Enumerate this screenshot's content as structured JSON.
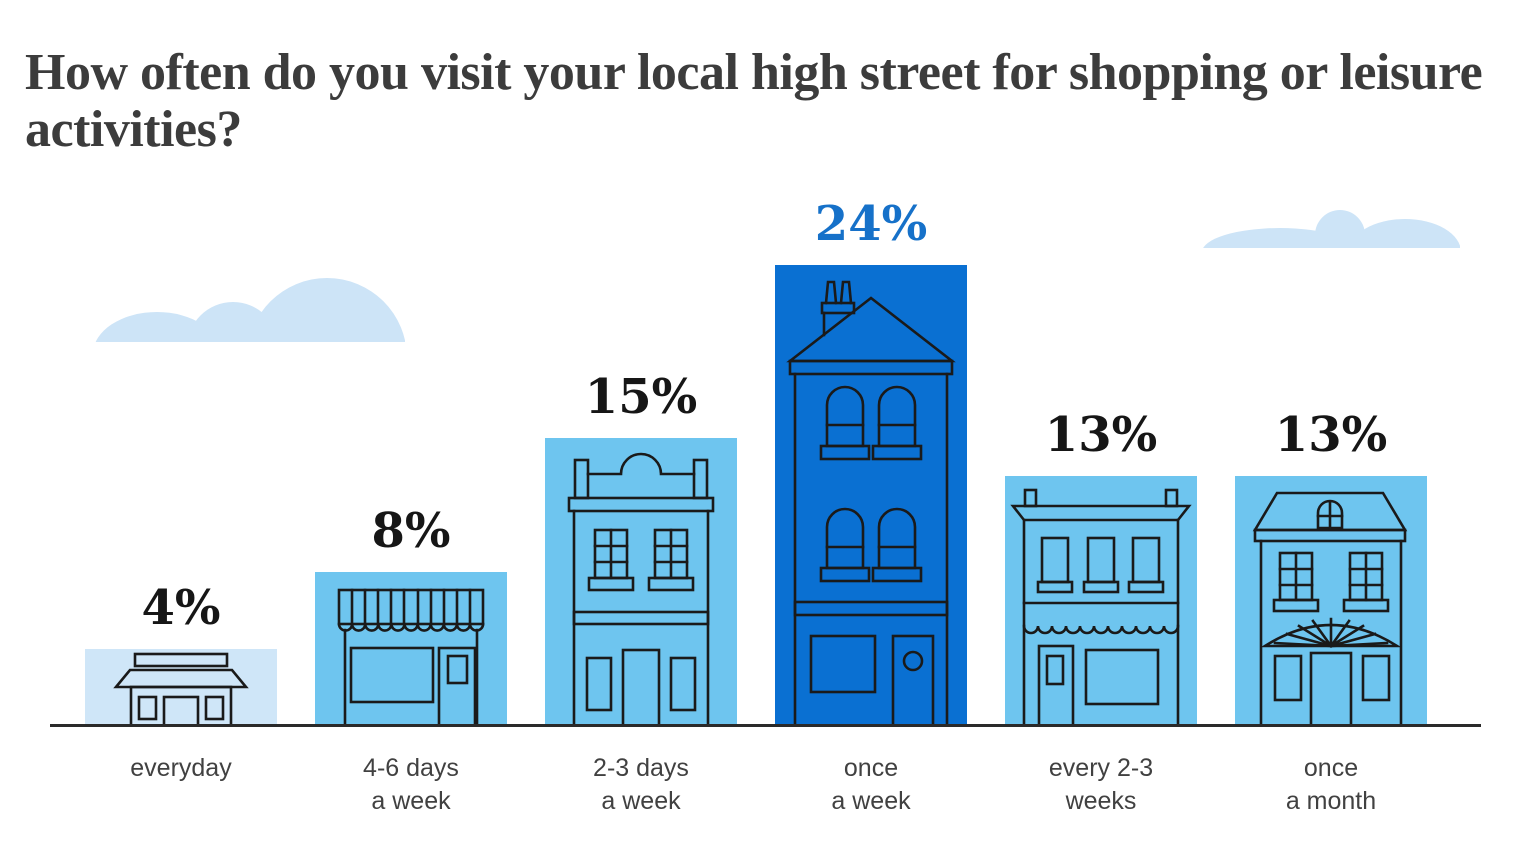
{
  "title": "How often do you visit your local high street for shopping or leisure activities?",
  "chart_data": {
    "type": "bar",
    "title": "How often do you visit your local high street for shopping or leisure activities?",
    "categories": [
      "everyday",
      "4-6 days a week",
      "2-3 days a week",
      "once a week",
      "every 2-3 weeks",
      "once a month"
    ],
    "values": [
      4,
      8,
      15,
      24,
      13,
      13
    ],
    "value_labels": [
      "4%",
      "8%",
      "15%",
      "24%",
      "13%",
      "13%"
    ],
    "unit": "%",
    "highlight_index": 3,
    "highlight_category": "once a week",
    "xlabel": "",
    "ylabel": "",
    "ylim": [
      0,
      25
    ],
    "grid": false,
    "legend": false,
    "orientation": "vertical",
    "style_note": "bars drawn as illustrated high-street buildings on a ground line with clouds"
  },
  "bars": [
    {
      "value_label": "4%",
      "label_lines": [
        "everyday"
      ],
      "building": "kiosk",
      "color": "#cfe6f8",
      "value_color": "#161616",
      "highlighted": false
    },
    {
      "value_label": "8%",
      "label_lines": [
        "4-6 days",
        "a week"
      ],
      "building": "awning-shop",
      "color": "#6ec5ef",
      "value_color": "#161616",
      "highlighted": false
    },
    {
      "value_label": "15%",
      "label_lines": [
        "2-3 days",
        "a week"
      ],
      "building": "victorian-shop",
      "color": "#6ec5ef",
      "value_color": "#161616",
      "highlighted": false
    },
    {
      "value_label": "24%",
      "label_lines": [
        "once",
        "a week"
      ],
      "building": "townhouse",
      "color": "#0a70d2",
      "value_color": "#1671c9",
      "highlighted": true
    },
    {
      "value_label": "13%",
      "label_lines": [
        "every 2-3",
        "weeks"
      ],
      "building": "cornice-shop",
      "color": "#6ec5ef",
      "value_color": "#161616",
      "highlighted": false
    },
    {
      "value_label": "13%",
      "label_lines": [
        "once",
        "a month"
      ],
      "building": "mansard-house",
      "color": "#6ec5ef",
      "value_color": "#161616",
      "highlighted": false
    }
  ],
  "decorations": {
    "clouds": [
      "cloud-left",
      "cloud-right"
    ]
  },
  "colors": {
    "background": "#ffffff",
    "title_text": "#3c3c3c",
    "label_text": "#414141",
    "value_text": "#161616",
    "value_text_highlight": "#1671c9",
    "bar_light": "#cfe6f8",
    "bar_medium": "#6ec5ef",
    "bar_highlight": "#0a70d2",
    "outline": "#1a1a1a",
    "cloud": "#cde4f7",
    "ground": "#2a2a2a"
  }
}
